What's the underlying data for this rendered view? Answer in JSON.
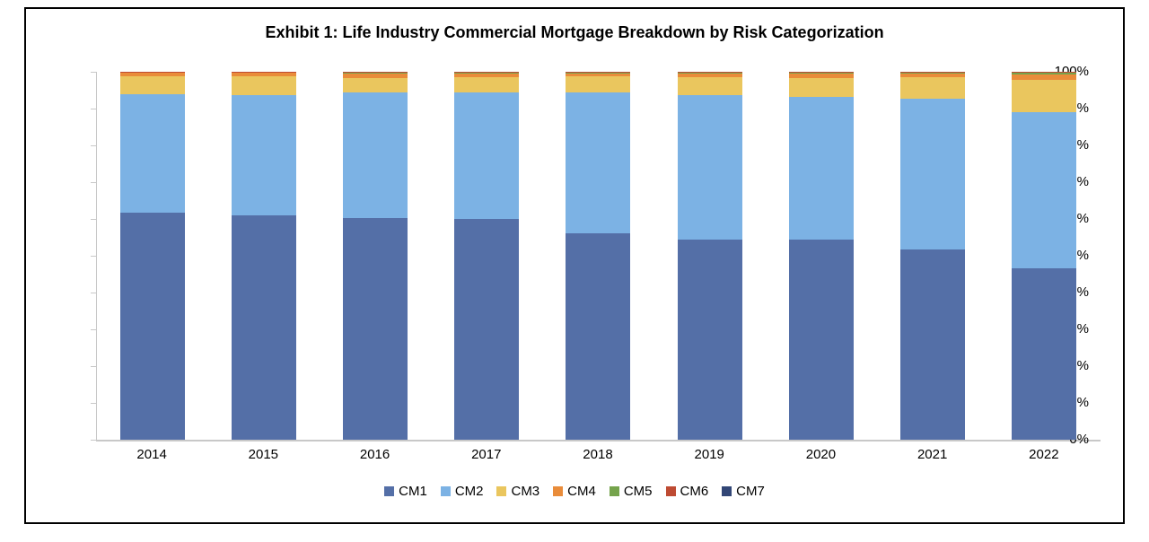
{
  "chart_data": {
    "type": "bar",
    "stacked": true,
    "title": "Exhibit 1: Life Industry Commercial Mortgage Breakdown by Risk Categorization",
    "categories": [
      "2014",
      "2015",
      "2016",
      "2017",
      "2018",
      "2019",
      "2020",
      "2021",
      "2022"
    ],
    "series": [
      {
        "name": "CM1",
        "color": "#546FA7",
        "values": [
          61.8,
          60.9,
          60.3,
          60.1,
          56.2,
          54.3,
          54.3,
          51.6,
          46.5
        ]
      },
      {
        "name": "CM2",
        "color": "#7CB2E4",
        "values": [
          32.0,
          32.7,
          34.1,
          34.3,
          38.2,
          39.3,
          38.9,
          41.0,
          42.6
        ]
      },
      {
        "name": "CM3",
        "color": "#EAC65E",
        "values": [
          4.9,
          5.3,
          4.0,
          4.2,
          4.3,
          4.9,
          5.2,
          5.9,
          8.8
        ]
      },
      {
        "name": "CM4",
        "color": "#E98C3A",
        "values": [
          1.0,
          0.8,
          1.2,
          1.0,
          0.9,
          1.1,
          1.1,
          1.1,
          1.4
        ]
      },
      {
        "name": "CM5",
        "color": "#75A34C",
        "values": [
          0.1,
          0.1,
          0.2,
          0.2,
          0.2,
          0.2,
          0.3,
          0.2,
          0.4
        ]
      },
      {
        "name": "CM6",
        "color": "#BE4B33",
        "values": [
          0.1,
          0.1,
          0.1,
          0.1,
          0.1,
          0.1,
          0.1,
          0.1,
          0.2
        ]
      },
      {
        "name": "CM7",
        "color": "#324676",
        "values": [
          0.1,
          0.1,
          0.1,
          0.1,
          0.1,
          0.1,
          0.1,
          0.1,
          0.1
        ]
      }
    ],
    "y_axis": {
      "min": 0,
      "max": 100,
      "tick_step": 10,
      "ticks": [
        "0%",
        "10%",
        "20%",
        "30%",
        "40%",
        "50%",
        "60%",
        "70%",
        "80%",
        "90%",
        "100%"
      ]
    },
    "x_axis_label": "",
    "y_axis_label": "",
    "legend_position": "bottom",
    "grid": false
  },
  "style_colors": {
    "axis_line": "#c8c8c8",
    "frame_border": "#000000",
    "background": "#ffffff",
    "text": "#000000"
  }
}
